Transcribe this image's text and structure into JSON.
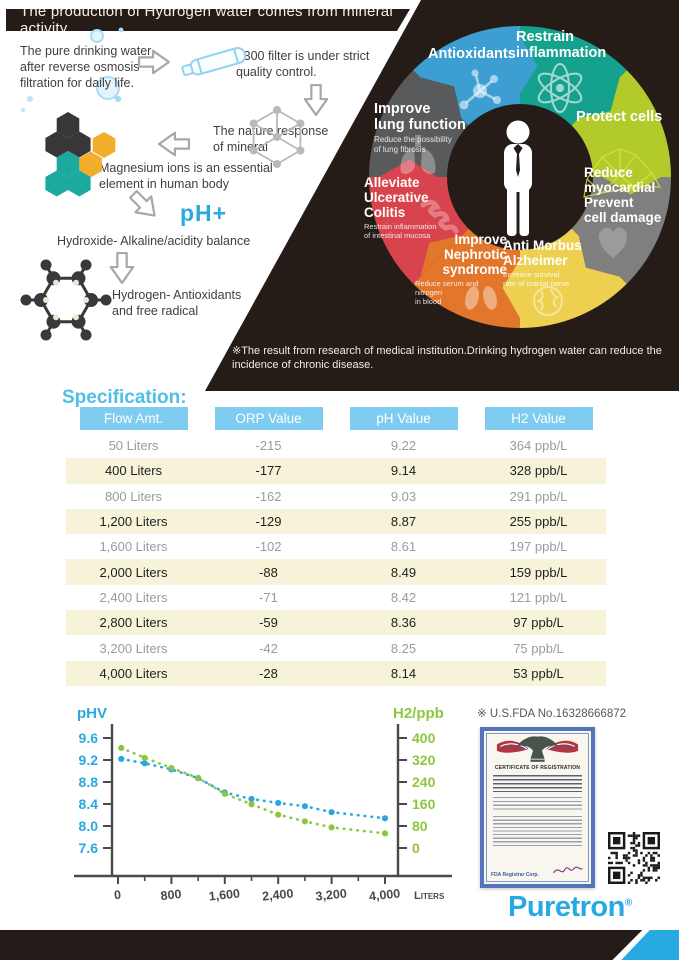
{
  "header": {
    "title": "The production of Hydrogen water comes from mineral activity"
  },
  "flow": {
    "step1": "The pure drinking water\nafter reverse osmosis\nfiltration for daily life.",
    "step2": "T300 filter is under strict\nquality control.",
    "step3": "The nature response\nof mineral",
    "step4": "Magnesium ions is an essential\nelement in human body",
    "ph_mark": "pH+",
    "step5": "Hydroxide- Alkaline/acidity balance",
    "step6": "Hydrogen- Antioxidants\nand free radical"
  },
  "wheel": {
    "center_icon": "person-icon",
    "segments": [
      {
        "id": "antioxidants",
        "label": "Antioxidants",
        "caption": "",
        "color": "#3d9ed2",
        "icon": "molecule-icon"
      },
      {
        "id": "restrain-inflammation",
        "label": "Restrain\ninflammation",
        "caption": "",
        "color": "#14a28e",
        "icon": "atom-icon"
      },
      {
        "id": "protect-cells",
        "label": "Protect cells",
        "caption": "",
        "color": "#b2ca2a",
        "icon": "cell-mesh-icon"
      },
      {
        "id": "reduce-myocardial",
        "label": "Reduce\nmyocardial\nPrevent\ncell damage",
        "caption": "",
        "color": "#7f7f7f",
        "icon": "heart-icon"
      },
      {
        "id": "anti-morbus-alzheimer",
        "label": "Anti Morbus\nAlzheimer",
        "caption": "Increase survival\nrate of cranial nerve",
        "color": "#eed051",
        "icon": "brain-icon"
      },
      {
        "id": "improve-nephrotic-syndrome",
        "label": "Improve\nNephrotic\nsyndrome",
        "caption": "Reduce serum and nitrogen\nin blood",
        "color": "#e2762a",
        "icon": "kidney-icon"
      },
      {
        "id": "alleviate-ulcerative-colitis",
        "label": "Alleviate\nUlcerative\nColitis",
        "caption": "Restrain inflammation\nof intestinal mucosa",
        "color": "#d8444e",
        "icon": "intestine-icon"
      },
      {
        "id": "improve-lung-function",
        "label": "Improve\nlung function",
        "caption": "Reduce the possibility\nof lung fibrosis",
        "color": "#595a5c",
        "icon": "lungs-icon"
      }
    ]
  },
  "note": "※The result from research of medical institution.Drinking hydrogen water can reduce the\nincidence of chronic disease.",
  "spec": {
    "title": "Specification:",
    "columns": [
      "Flow Amt.",
      "ORP Value",
      "pH Value",
      "H2 Value"
    ],
    "rows": [
      [
        "50 Liters",
        "-215",
        "9.22",
        "364 ppb/L"
      ],
      [
        "400 Liters",
        "-177",
        "9.14",
        "328 ppb/L"
      ],
      [
        "800 Liters",
        "-162",
        "9.03",
        "291 ppb/L"
      ],
      [
        "1,200 Liters",
        "-129",
        "8.87",
        "255 ppb/L"
      ],
      [
        "1,600 Liters",
        "-102",
        "8.61",
        "197 ppb/L"
      ],
      [
        "2,000 Liters",
        "-88",
        "8.49",
        "159 ppb/L"
      ],
      [
        "2,400 Liters",
        "-71",
        "8.42",
        "121 ppb/L"
      ],
      [
        "2,800 Liters",
        "-59",
        "8.36",
        "97 ppb/L"
      ],
      [
        "3,200 Liters",
        "-42",
        "8.25",
        "75 ppb/L"
      ],
      [
        "4,000 Liters",
        "-28",
        "8.14",
        "53 ppb/L"
      ]
    ]
  },
  "chart_data": {
    "type": "line",
    "line_style": "dotted",
    "grid": false,
    "x": [
      50,
      400,
      800,
      1200,
      1600,
      2000,
      2400,
      2800,
      3200,
      4000
    ],
    "series": [
      {
        "name": "pHV",
        "axis": "left",
        "color": "#29a8e0",
        "values": [
          9.22,
          9.14,
          9.03,
          8.87,
          8.61,
          8.49,
          8.42,
          8.36,
          8.25,
          8.14
        ]
      },
      {
        "name": "H2/ppb",
        "axis": "right",
        "color": "#8dc63f",
        "values": [
          364,
          328,
          291,
          255,
          197,
          159,
          121,
          97,
          75,
          53
        ]
      }
    ],
    "left_axis": {
      "label": "pHV",
      "ticks": [
        9.6,
        9.2,
        8.8,
        8.4,
        8.0,
        7.6
      ],
      "range": [
        7.6,
        9.6
      ]
    },
    "right_axis": {
      "label": "H2/ppb",
      "ticks": [
        400,
        320,
        240,
        160,
        80,
        0
      ],
      "range": [
        0,
        400
      ]
    },
    "x_axis": {
      "label": "Liters",
      "ticks": [
        "0",
        "800",
        "1,600",
        "2,400",
        "3,200",
        "4,000"
      ],
      "tick_values": [
        0,
        800,
        1600,
        2400,
        3200,
        4000
      ],
      "range": [
        0,
        4300
      ]
    }
  },
  "certification": {
    "fda_no": "※ U.S.FDA No.16328666872",
    "certificate_title": "CERTIFICATE OF REGISTRATION",
    "certificate_footer": "FDA Registrar Corp."
  },
  "brand": {
    "logo": "Puretron",
    "registered_mark": "®",
    "color": "#29a9e1"
  }
}
